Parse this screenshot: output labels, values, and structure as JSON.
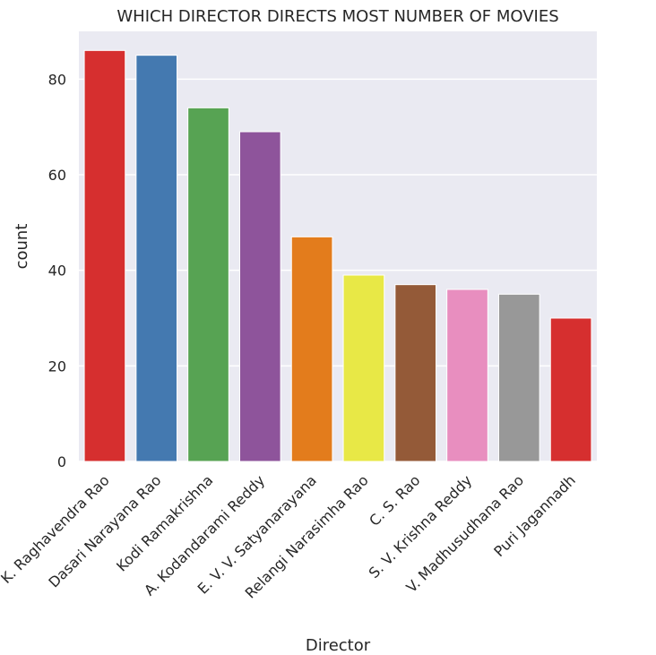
{
  "chart_data": {
    "type": "bar",
    "title": "WHICH DIRECTOR DIRECTS MOST NUMBER OF MOVIES",
    "xlabel": "Director",
    "ylabel": "count",
    "categories": [
      "K. Raghavendra Rao",
      "Dasari Narayana Rao",
      "Kodi Ramakrishna",
      "A. Kodandarami Reddy",
      "E. V. V. Satyanarayana",
      "Relangi Narasimha Rao",
      "C. S. Rao",
      "S. V. Krishna Reddy",
      "V. Madhusudhana Rao",
      "Puri Jagannadh"
    ],
    "values": [
      86,
      85,
      74,
      69,
      47,
      39,
      37,
      36,
      35,
      30
    ],
    "colors": [
      "#d62f2f",
      "#4479b0",
      "#57a353",
      "#8e549b",
      "#e37c1c",
      "#e8e846",
      "#945a38",
      "#e88ebf",
      "#989898",
      "#d62f2f"
    ],
    "yticks": [
      0,
      20,
      40,
      60,
      80
    ],
    "ylim": [
      0,
      90
    ],
    "grid": true,
    "background": "#eaeaf2"
  }
}
